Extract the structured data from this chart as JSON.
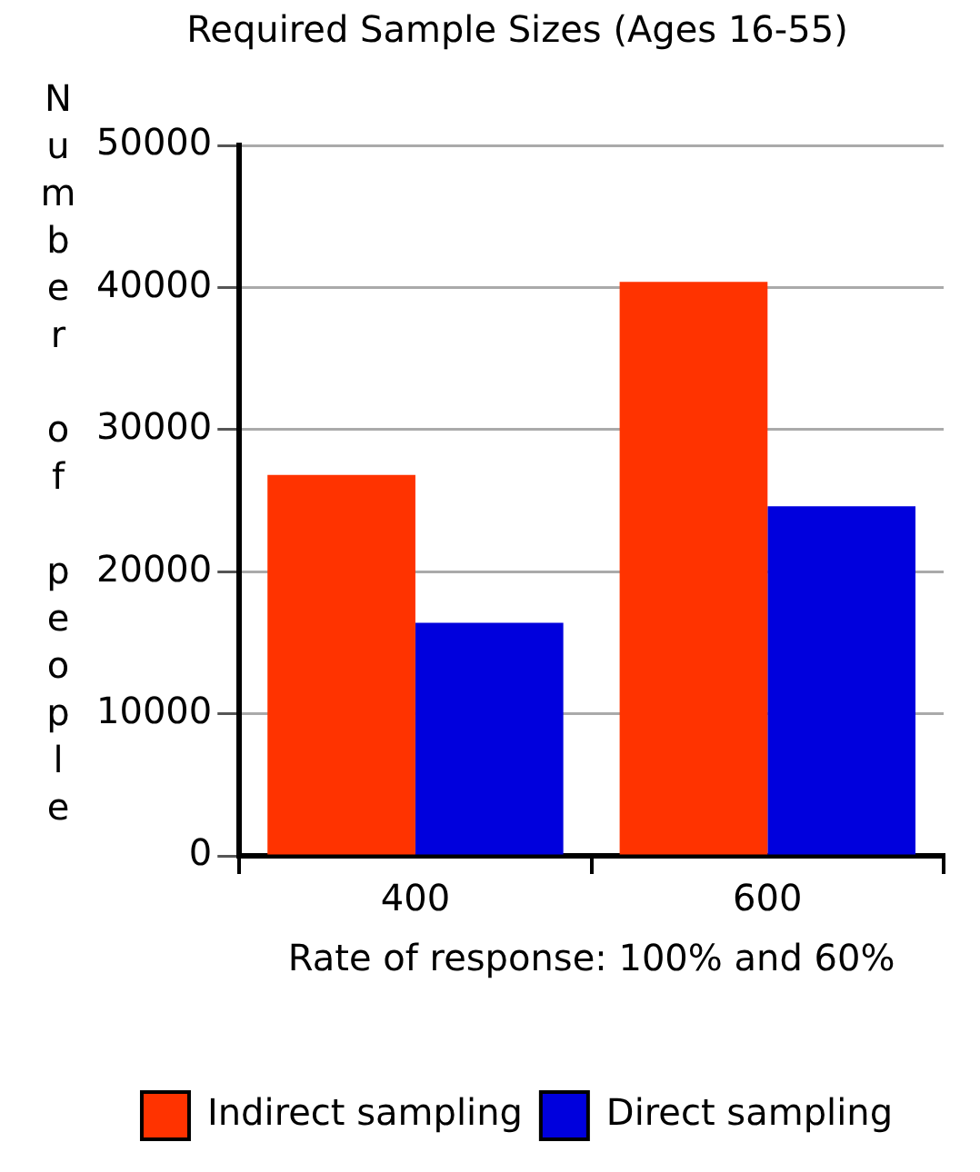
{
  "chart_data": {
    "type": "bar",
    "title": "Required Sample Sizes (Ages 16-55)",
    "xlabel": "Rate of response: 100% and 60%",
    "ylabel": "Number of people",
    "categories": [
      "400",
      "600"
    ],
    "series": [
      {
        "name": "Indirect sampling",
        "color": "#ff3300",
        "values": [
          26800,
          40400
        ]
      },
      {
        "name": "Direct sampling",
        "color": "#0000dd",
        "values": [
          16400,
          24600
        ]
      }
    ],
    "ylim": [
      0,
      50000
    ],
    "yticks": [
      0,
      10000,
      20000,
      30000,
      40000,
      50000
    ],
    "grid": "y",
    "legend": "bottom"
  }
}
